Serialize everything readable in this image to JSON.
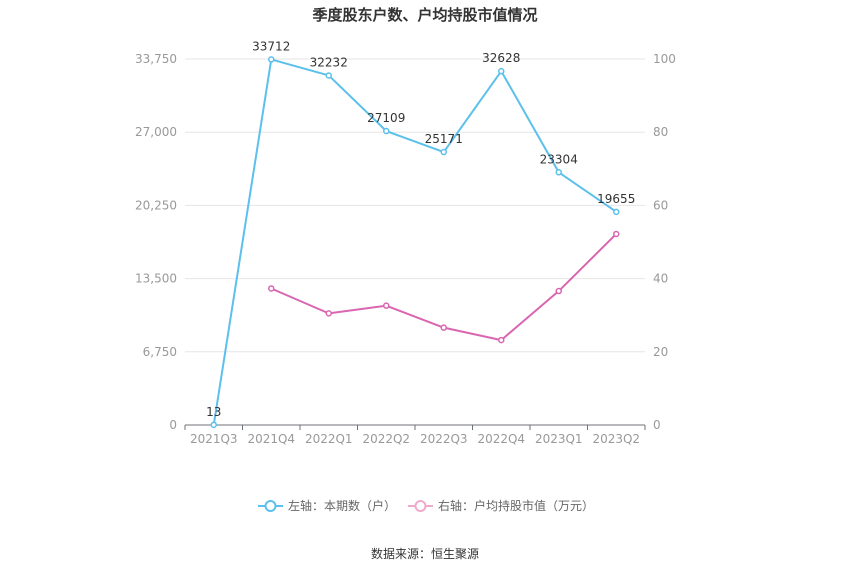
{
  "chart_data": {
    "type": "line",
    "title": "季度股东户数、户均持股市值情况",
    "categories": [
      "2021Q3",
      "2021Q4",
      "2022Q1",
      "2022Q2",
      "2022Q3",
      "2022Q4",
      "2023Q1",
      "2023Q2"
    ],
    "y_left": {
      "range": [
        0,
        33750
      ],
      "ticks": [
        "0",
        "6,750",
        "13,500",
        "20,250",
        "27,000",
        "33,750"
      ]
    },
    "y_right": {
      "range": [
        0,
        100
      ],
      "ticks": [
        "0",
        "20",
        "40",
        "60",
        "80",
        "100"
      ]
    },
    "series": [
      {
        "name": "左轴：本期数（户）",
        "axis": "left",
        "color": "#5bc0eb",
        "values": [
          13,
          33712,
          32232,
          27109,
          25171,
          32628,
          23304,
          19655
        ],
        "labels": [
          "13",
          "33712",
          "32232",
          "27109",
          "25171",
          "32628",
          "23304",
          "19655"
        ]
      },
      {
        "name": "右轴：户均持股市值（万元）",
        "axis": "right",
        "color": "#d966b0",
        "legend_color": "#eeaacc",
        "values": [
          null,
          37.3,
          30.5,
          32.6,
          26.6,
          23.2,
          36.6,
          52.2
        ]
      }
    ],
    "grid": true,
    "legend_position": "bottom"
  },
  "source": "数据来源：恒生聚源"
}
